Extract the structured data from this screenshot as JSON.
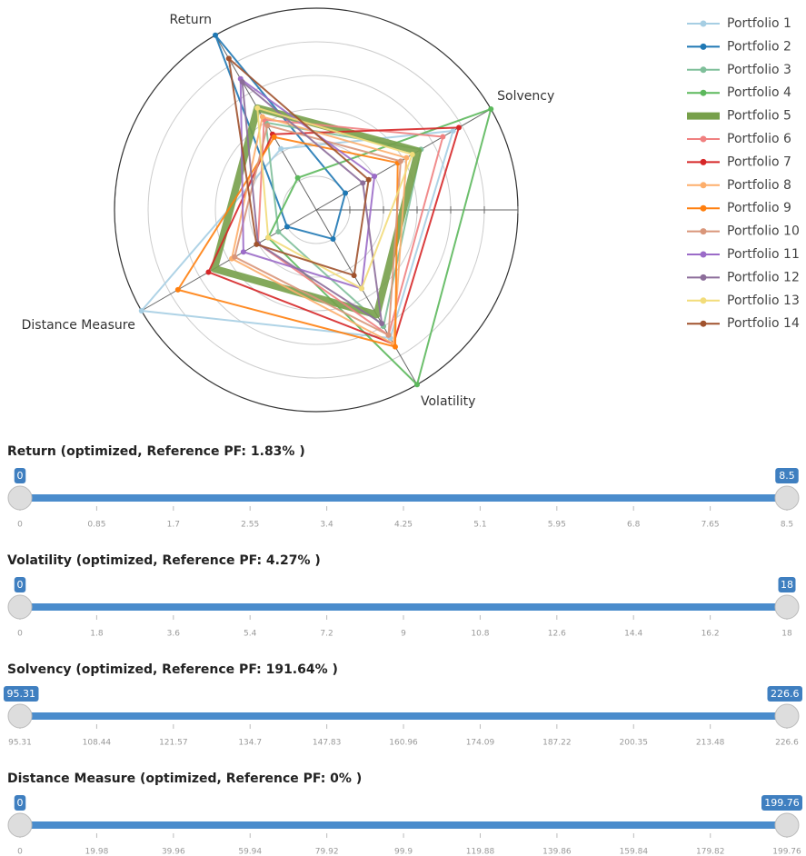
{
  "chart_data": {
    "type": "radar",
    "axes": [
      "Return",
      "Solvency",
      "Volatility",
      "Distance Measure"
    ],
    "rlim": [
      0,
      6
    ],
    "rticks": [
      1,
      2,
      3,
      4,
      5,
      6
    ],
    "grid": true,
    "series": [
      {
        "name": "Portfolio 1",
        "color": "#a6cee3",
        "values": [
          2.1,
          4.7,
          4.4,
          6.0
        ]
      },
      {
        "name": "Portfolio 2",
        "color": "#1f78b4",
        "values": [
          6.0,
          1.0,
          1.0,
          1.0
        ]
      },
      {
        "name": "Portfolio 3",
        "color": "#7fbf9a",
        "values": [
          3.0,
          3.6,
          4.0,
          1.3
        ]
      },
      {
        "name": "Portfolio 4",
        "color": "#5cb85c",
        "values": [
          1.1,
          6.0,
          6.0,
          1.65
        ]
      },
      {
        "name": "Portfolio 5",
        "color": "#77a04a",
        "width": 8,
        "values": [
          3.5,
          3.5,
          3.6,
          3.5
        ]
      },
      {
        "name": "Portfolio 6",
        "color": "#f08080",
        "values": [
          3.1,
          4.35,
          4.3,
          2.0
        ]
      },
      {
        "name": "Portfolio 7",
        "color": "#d62728",
        "values": [
          2.6,
          4.9,
          4.6,
          3.7
        ]
      },
      {
        "name": "Portfolio 8",
        "color": "#fdae6b",
        "values": [
          3.2,
          3.1,
          4.6,
          2.9
        ]
      },
      {
        "name": "Portfolio 9",
        "color": "#ff7f0e",
        "values": [
          2.5,
          2.8,
          4.7,
          4.75
        ]
      },
      {
        "name": "Portfolio 10",
        "color": "#d9967a",
        "values": [
          2.9,
          2.9,
          4.3,
          2.8
        ]
      },
      {
        "name": "Portfolio 11",
        "color": "#9b6bc8",
        "values": [
          4.5,
          2.0,
          2.7,
          2.5
        ]
      },
      {
        "name": "Portfolio 12",
        "color": "#8c6d9a",
        "values": [
          4.4,
          1.6,
          3.9,
          2.0
        ]
      },
      {
        "name": "Portfolio 13",
        "color": "#f2dc7a",
        "values": [
          3.5,
          3.3,
          2.7,
          1.65
        ]
      },
      {
        "name": "Portfolio 14",
        "color": "#a0522d",
        "values": [
          5.2,
          1.8,
          2.25,
          2.05
        ]
      }
    ]
  },
  "sliders": [
    {
      "label": "Return (optimized, Reference PF: 1.83% )",
      "range": [
        0,
        8.5
      ],
      "value": [
        0,
        8.5
      ],
      "ticks": [
        0,
        0.85,
        1.7,
        2.55,
        3.4,
        4.25,
        5.1,
        5.95,
        6.8,
        7.65,
        8.5
      ]
    },
    {
      "label": "Volatility (optimized, Reference PF: 4.27% )",
      "range": [
        0,
        18
      ],
      "value": [
        0,
        18
      ],
      "ticks": [
        0,
        1.8,
        3.6,
        5.4,
        7.2,
        9,
        10.8,
        12.6,
        14.4,
        16.2,
        18
      ]
    },
    {
      "label": "Solvency (optimized, Reference PF: 191.64% )",
      "range": [
        95.31,
        226.6
      ],
      "value": [
        95.31,
        226.6
      ],
      "ticks": [
        95.31,
        108.44,
        121.57,
        134.7,
        147.83,
        160.96,
        174.09,
        187.22,
        200.35,
        213.48,
        226.6
      ]
    },
    {
      "label": "Distance Measure (optimized, Reference PF: 0% )",
      "range": [
        0,
        199.76
      ],
      "value": [
        0,
        199.76
      ],
      "ticks": [
        0,
        19.98,
        39.96,
        59.94,
        79.92,
        99.9,
        119.88,
        139.86,
        159.84,
        179.82,
        199.76
      ]
    }
  ]
}
